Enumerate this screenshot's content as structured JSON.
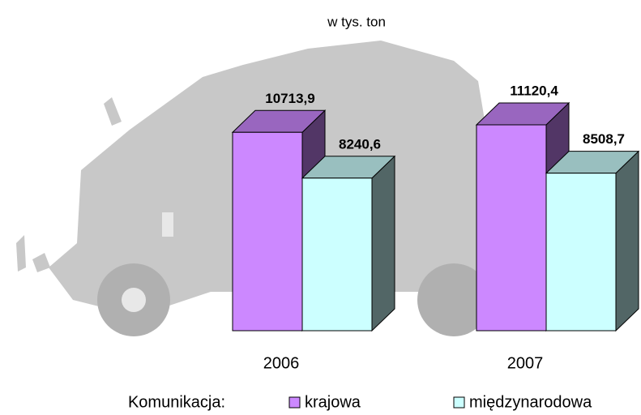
{
  "chart_data": {
    "type": "bar",
    "subtitle": "w tys. ton",
    "categories": [
      "2006",
      "2007"
    ],
    "legend_title": "Komunikacja:",
    "series": [
      {
        "name": "krajowa",
        "color": "#cc88ff",
        "values": [
          10713.9,
          11120.4
        ],
        "value_labels": [
          "10713,9",
          "11120,4"
        ]
      },
      {
        "name": "międzynarodowa",
        "color": "#ccffff",
        "values": [
          8240.6,
          8508.7
        ],
        "value_labels": [
          "8240,6",
          "8508,7"
        ]
      }
    ]
  }
}
